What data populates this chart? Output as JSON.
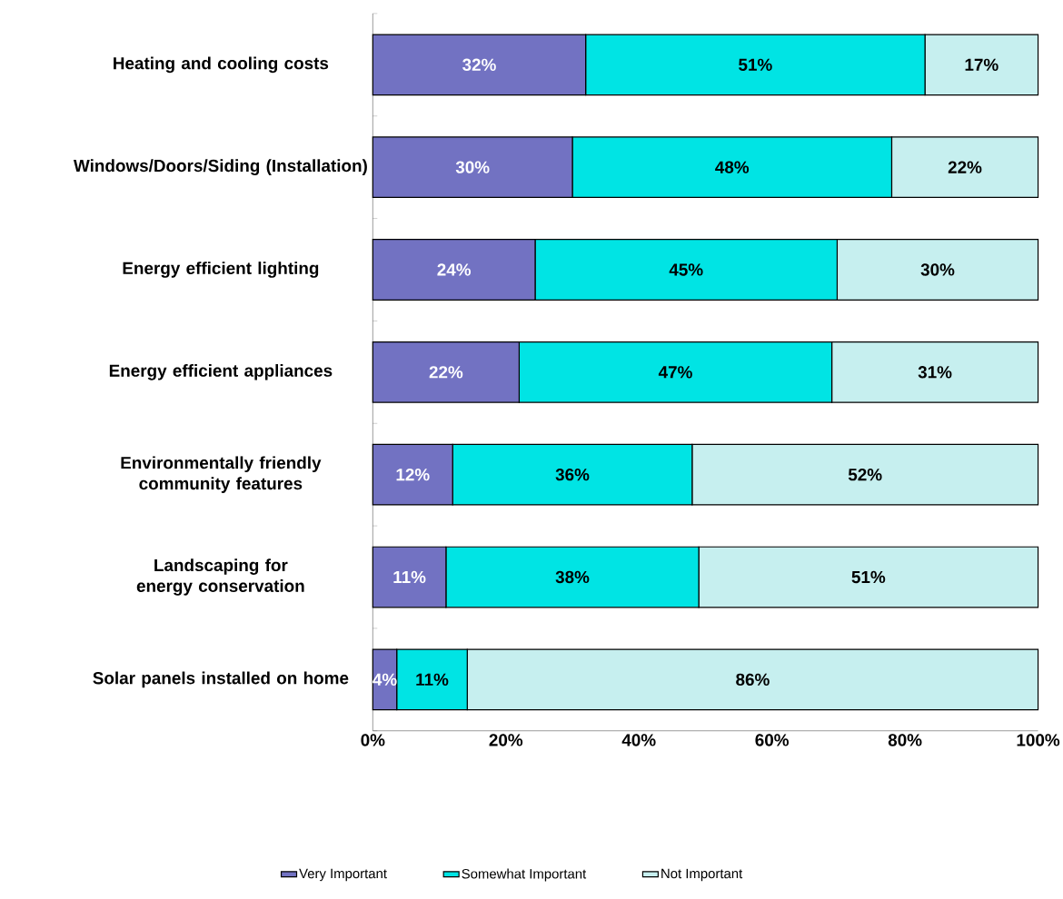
{
  "chart_data": {
    "type": "bar",
    "orientation": "horizontal",
    "stacked": true,
    "categories": [
      "Heating and cooling costs",
      "Windows/Doors/Siding (Installation)",
      "Energy efficient lighting",
      "Energy efficient appliances",
      "Environmentally friendly community features",
      "Landscaping for energy conservation",
      "Solar panels installed on home"
    ],
    "series": [
      {
        "name": "Very Important",
        "color": "#7272c2",
        "values": [
          32,
          30,
          24.4,
          22,
          12,
          11,
          3.6
        ],
        "value_labels": [
          "32%",
          "30%",
          "24%",
          "22%",
          "12%",
          "11%",
          "4%"
        ]
      },
      {
        "name": "Somewhat Important",
        "color": "#00e4e4",
        "values": [
          51,
          48,
          45.4,
          47,
          36,
          38,
          10.6
        ],
        "value_labels": [
          "51%",
          "48%",
          "45%",
          "47%",
          "36%",
          "38%",
          "11%"
        ]
      },
      {
        "name": "Not Important",
        "color": "#c6efef",
        "values": [
          17,
          22,
          30.2,
          31,
          52,
          51,
          85.8
        ],
        "value_labels": [
          "17%",
          "22%",
          "30%",
          "31%",
          "52%",
          "51%",
          "86%"
        ]
      }
    ],
    "xlim": [
      0,
      100
    ],
    "xticks": [
      {
        "value": 0,
        "label": "0%"
      },
      {
        "value": 20,
        "label": "20%"
      },
      {
        "value": 40,
        "label": "40%"
      },
      {
        "value": 60,
        "label": "60%"
      },
      {
        "value": 80,
        "label": "80%"
      },
      {
        "value": 100,
        "label": "100%"
      }
    ],
    "legend": "bottom",
    "grid": false
  }
}
